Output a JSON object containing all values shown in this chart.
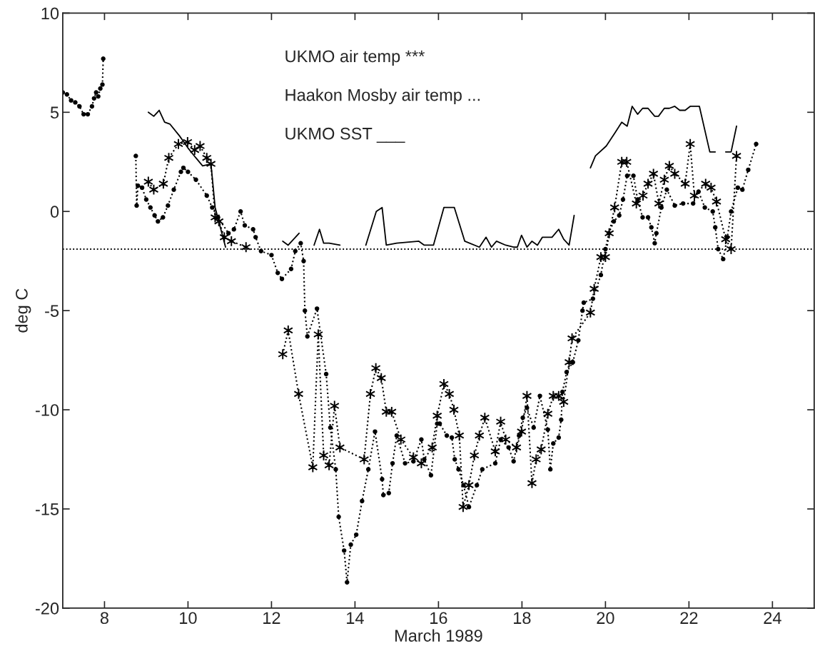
{
  "chart_data": {
    "type": "line",
    "xlabel": "March 1989",
    "ylabel": "deg C",
    "annotations": [
      "UKMO air temp ***",
      "Haakon Mosby air temp ...",
      "UKMO SST ___"
    ],
    "xlim": [
      7,
      25
    ],
    "xticks": [
      8,
      10,
      12,
      14,
      16,
      18,
      20,
      22,
      24
    ],
    "ylim": [
      -20,
      10
    ],
    "yticks": [
      -20,
      -15,
      -10,
      -5,
      0,
      5,
      10
    ],
    "grid": false,
    "legend": false,
    "ref_lines": [
      {
        "axis": "y",
        "value": -1.9,
        "color": "#000000",
        "line_style": "dotted"
      }
    ],
    "series": [
      {
        "color": "#000000",
        "marker": "circle",
        "line_style": "dotted",
        "x": [
          7.0,
          7.1,
          7.2,
          7.3,
          7.4,
          7.5,
          7.6,
          7.7,
          7.75,
          7.8,
          7.85,
          7.9,
          7.95,
          7.97,
          8.4,
          8.75,
          8.77,
          8.8,
          8.9,
          9.0,
          9.1,
          9.2,
          9.28,
          9.4,
          9.52,
          9.66,
          9.83,
          9.89,
          10.0,
          10.19,
          10.45,
          10.58,
          10.72,
          10.97,
          11.1,
          11.26,
          11.36,
          11.56,
          11.62,
          11.75,
          12.0,
          12.15,
          12.25,
          12.47,
          12.57,
          12.7,
          12.77,
          12.8,
          12.86,
          13.09,
          13.31,
          13.41,
          13.54,
          13.61,
          13.74,
          13.81,
          13.9,
          14.03,
          14.17,
          14.32,
          14.48,
          14.65,
          14.68,
          14.81,
          14.9,
          15.0,
          15.2,
          15.4,
          15.59,
          15.66,
          15.82,
          15.97,
          16.03,
          16.2,
          16.32,
          16.39,
          16.48,
          16.6,
          16.73,
          16.92,
          17.05,
          17.36,
          17.49,
          17.68,
          17.8,
          17.93,
          18.02,
          18.12,
          18.28,
          18.43,
          18.62,
          18.68,
          18.75,
          18.88,
          18.94,
          18.97,
          19.07,
          19.22,
          19.35,
          19.45,
          19.48,
          19.7,
          19.89,
          20.0,
          20.08,
          20.2,
          20.33,
          20.42,
          20.52,
          20.67,
          20.77,
          20.89,
          21.02,
          21.1,
          21.18,
          21.22,
          21.34,
          21.47,
          21.66,
          21.86,
          22.1,
          22.23,
          22.38,
          22.57,
          22.63,
          22.7,
          22.82,
          22.92,
          23.01,
          23.17,
          23.28,
          23.42,
          23.61
        ],
        "values": [
          6.0,
          5.9,
          5.6,
          5.5,
          5.3,
          4.9,
          4.9,
          5.3,
          5.7,
          6.0,
          5.8,
          6.2,
          6.4,
          7.7,
          null,
          2.8,
          0.3,
          1.3,
          1.2,
          0.6,
          0.2,
          -0.2,
          -0.5,
          -0.3,
          0.3,
          1.1,
          2.0,
          2.2,
          2.0,
          1.6,
          0.8,
          0.2,
          -0.3,
          -1.1,
          -0.9,
          0.0,
          -0.7,
          -0.9,
          -1.3,
          -2.0,
          -2.2,
          -3.1,
          -3.4,
          -2.9,
          -2.0,
          -1.6,
          -2.5,
          -5.0,
          -6.3,
          -4.9,
          -8.2,
          -10.9,
          -13.0,
          -15.4,
          -17.1,
          -18.7,
          -16.8,
          -16.3,
          -14.6,
          -13.0,
          -11.1,
          -13.5,
          -14.3,
          -14.2,
          -12.7,
          -11.3,
          -12.7,
          -12.6,
          -11.5,
          -12.5,
          -13.3,
          -10.7,
          -10.7,
          -11.3,
          -11.4,
          -12.5,
          -13.0,
          -13.8,
          -14.9,
          -13.8,
          -13.0,
          -12.7,
          -11.5,
          -11.9,
          -12.6,
          -11.3,
          -10.4,
          -9.9,
          -10.9,
          -9.3,
          -11.0,
          -13.0,
          -11.7,
          -11.4,
          -10.5,
          -9.1,
          -8.1,
          -7.6,
          -6.5,
          -5.0,
          -4.6,
          -4.4,
          -3.2,
          -1.9,
          -1.1,
          -0.5,
          -0.2,
          0.6,
          1.8,
          1.8,
          0.6,
          -0.3,
          -0.3,
          -0.8,
          -1.6,
          -1.1,
          0.2,
          1.1,
          0.3,
          0.4,
          0.4,
          1.0,
          0.2,
          0.0,
          -0.8,
          -1.9,
          -2.4,
          -1.3,
          0.0,
          1.2,
          1.1,
          2.1,
          3.4
        ]
      },
      {
        "color": "#000000",
        "marker": "cross",
        "line_style": "dotted",
        "x": [
          9.05,
          9.18,
          9.41,
          9.54,
          9.77,
          9.99,
          10.16,
          10.29,
          10.45,
          10.55,
          10.65,
          10.74,
          10.87,
          11.04,
          11.39,
          11.8,
          12.27,
          12.4,
          12.65,
          12.99,
          13.12,
          13.25,
          13.38,
          13.51,
          13.64,
          14.22,
          14.37,
          14.5,
          14.63,
          14.75,
          14.88,
          15.1,
          15.4,
          15.59,
          15.85,
          15.97,
          16.13,
          16.26,
          16.37,
          16.5,
          16.59,
          16.73,
          16.86,
          16.98,
          17.11,
          17.36,
          17.49,
          17.61,
          17.87,
          17.99,
          18.12,
          18.24,
          18.34,
          18.46,
          18.62,
          18.75,
          18.88,
          19.0,
          19.13,
          19.2,
          19.64,
          19.73,
          19.89,
          20.0,
          20.09,
          20.22,
          20.39,
          20.51,
          20.74,
          20.9,
          21.02,
          21.15,
          21.28,
          21.41,
          21.53,
          21.66,
          21.91,
          22.03,
          22.13,
          22.4,
          22.53,
          22.66,
          22.88,
          23.01,
          23.14
        ],
        "values": [
          1.5,
          1.1,
          1.4,
          2.7,
          3.4,
          3.5,
          3.1,
          3.3,
          2.7,
          2.4,
          -0.3,
          -0.5,
          -1.3,
          -1.5,
          -1.8,
          null,
          -7.2,
          -6.0,
          -9.2,
          -12.9,
          -6.2,
          -12.3,
          -12.8,
          -9.8,
          -11.9,
          -12.5,
          -9.2,
          -7.9,
          -8.4,
          -10.1,
          -10.1,
          -11.5,
          -12.4,
          -12.7,
          -11.9,
          -10.3,
          -8.7,
          -9.2,
          -10.0,
          -11.3,
          -14.9,
          -13.8,
          -12.3,
          -11.3,
          -10.4,
          -12.1,
          -10.6,
          -11.5,
          -11.9,
          -11.1,
          -9.3,
          -13.7,
          -12.5,
          -12.0,
          -10.2,
          -9.3,
          -9.3,
          -9.6,
          -7.6,
          -6.4,
          -5.1,
          -3.9,
          -2.3,
          -2.3,
          -1.1,
          0.2,
          2.5,
          2.5,
          0.4,
          0.8,
          1.4,
          1.9,
          0.4,
          1.6,
          2.3,
          1.9,
          1.4,
          3.4,
          0.8,
          1.4,
          1.2,
          0.5,
          -1.4,
          -1.9,
          2.8
        ]
      },
      {
        "color": "#000000",
        "marker": "none",
        "line_style": "solid",
        "x": [
          9.05,
          9.18,
          9.31,
          9.44,
          9.57,
          9.8,
          10.0,
          10.19,
          10.35,
          10.55,
          10.65,
          10.9,
          11.6,
          12.27,
          12.4,
          12.66,
          12.85,
          13.02,
          13.15,
          13.25,
          13.38,
          13.64,
          13.9,
          14.26,
          14.51,
          14.65,
          14.75,
          15.0,
          15.53,
          15.66,
          15.88,
          16.13,
          16.38,
          16.63,
          16.98,
          17.14,
          17.27,
          17.39,
          17.61,
          17.8,
          17.89,
          17.99,
          18.12,
          18.24,
          18.37,
          18.49,
          18.72,
          18.88,
          19.0,
          19.13,
          19.25,
          19.45,
          19.64,
          19.76,
          20.02,
          20.24,
          20.39,
          20.52,
          20.64,
          20.77,
          20.89,
          21.02,
          21.18,
          21.27,
          21.41,
          21.53,
          21.66,
          21.78,
          21.91,
          22.03,
          22.25,
          22.5,
          22.63,
          22.75,
          22.88,
          23.01,
          23.14
        ],
        "values": [
          5.0,
          4.8,
          5.1,
          4.5,
          4.4,
          3.8,
          3.2,
          2.7,
          2.3,
          2.4,
          0.2,
          -1.8,
          null,
          -1.5,
          -1.7,
          -1.1,
          null,
          -1.7,
          -0.9,
          -1.6,
          -1.6,
          -1.7,
          null,
          -1.7,
          0.0,
          0.2,
          -1.7,
          -1.6,
          -1.5,
          -1.7,
          -1.7,
          0.2,
          0.2,
          -1.5,
          -1.8,
          -1.3,
          -1.8,
          -1.5,
          -1.7,
          -1.8,
          -1.8,
          -1.2,
          -1.8,
          -1.5,
          -1.7,
          -1.3,
          -1.3,
          -0.9,
          -1.4,
          -1.7,
          -0.2,
          null,
          2.2,
          2.8,
          3.3,
          4.0,
          4.5,
          4.3,
          5.3,
          4.9,
          5.2,
          5.2,
          4.8,
          4.8,
          5.2,
          5.2,
          5.3,
          5.1,
          5.1,
          5.3,
          5.3,
          3.0,
          3.0,
          null,
          3.0,
          3.0,
          4.3
        ]
      }
    ]
  }
}
